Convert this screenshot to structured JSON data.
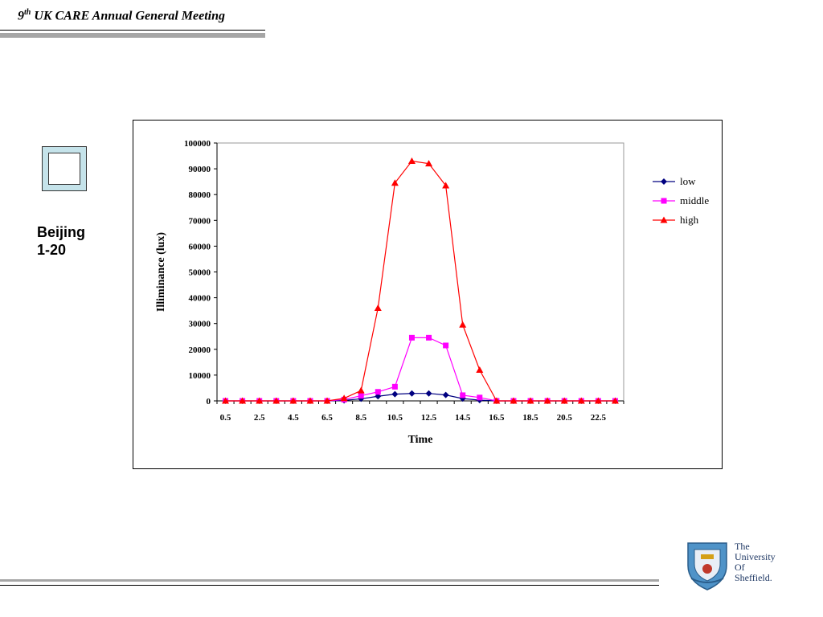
{
  "header": {
    "title_num": "9",
    "title_sup": "th",
    "title_rest": " UK CARE Annual General Meeting"
  },
  "side_label": {
    "line1": "Beijing",
    "line2": "1-20"
  },
  "logo": {
    "line1": "The",
    "line2": "University",
    "line3": "Of",
    "line4": "Sheffield."
  },
  "colors": {
    "low": "#000080",
    "middle": "#ff00ff",
    "high": "#ff0000",
    "accent_box": "#c5e3ea"
  },
  "chart_data": {
    "type": "line",
    "title": "",
    "xlabel": "Time",
    "ylabel": "Illiminance (lux)",
    "ylim": [
      0,
      100000
    ],
    "yticks": [
      "100000",
      "90000",
      "80000",
      "70000",
      "60000",
      "50000",
      "40000",
      "30000",
      "20000",
      "10000",
      "0"
    ],
    "x": [
      0.5,
      1.5,
      2.5,
      3.5,
      4.5,
      5.5,
      6.5,
      7.5,
      8.5,
      9.5,
      10.5,
      11.5,
      12.5,
      13.5,
      14.5,
      15.5,
      16.5,
      17.5,
      18.5,
      19.5,
      20.5,
      21.5,
      22.5,
      23.5
    ],
    "xtick_labels": [
      "0.5",
      "2.5",
      "4.5",
      "6.5",
      "8.5",
      "10.5",
      "12.5",
      "14.5",
      "16.5",
      "18.5",
      "20.5",
      "22.5"
    ],
    "grid": false,
    "legend_position": "right",
    "series": [
      {
        "name": "low",
        "marker": "diamond",
        "values": [
          0,
          0,
          0,
          0,
          0,
          0,
          0,
          200,
          800,
          1800,
          2600,
          2900,
          2900,
          2300,
          900,
          300,
          0,
          0,
          0,
          0,
          0,
          0,
          0,
          0
        ]
      },
      {
        "name": "middle",
        "marker": "square",
        "values": [
          0,
          0,
          0,
          0,
          0,
          0,
          0,
          500,
          2000,
          3500,
          5500,
          24500,
          24500,
          21500,
          2200,
          1300,
          0,
          0,
          0,
          0,
          0,
          0,
          0,
          0
        ]
      },
      {
        "name": "high",
        "marker": "triangle",
        "values": [
          0,
          0,
          0,
          0,
          0,
          0,
          0,
          1000,
          4000,
          36000,
          84500,
          93000,
          92000,
          83500,
          29500,
          12000,
          0,
          0,
          0,
          0,
          0,
          0,
          0,
          0
        ]
      }
    ]
  }
}
